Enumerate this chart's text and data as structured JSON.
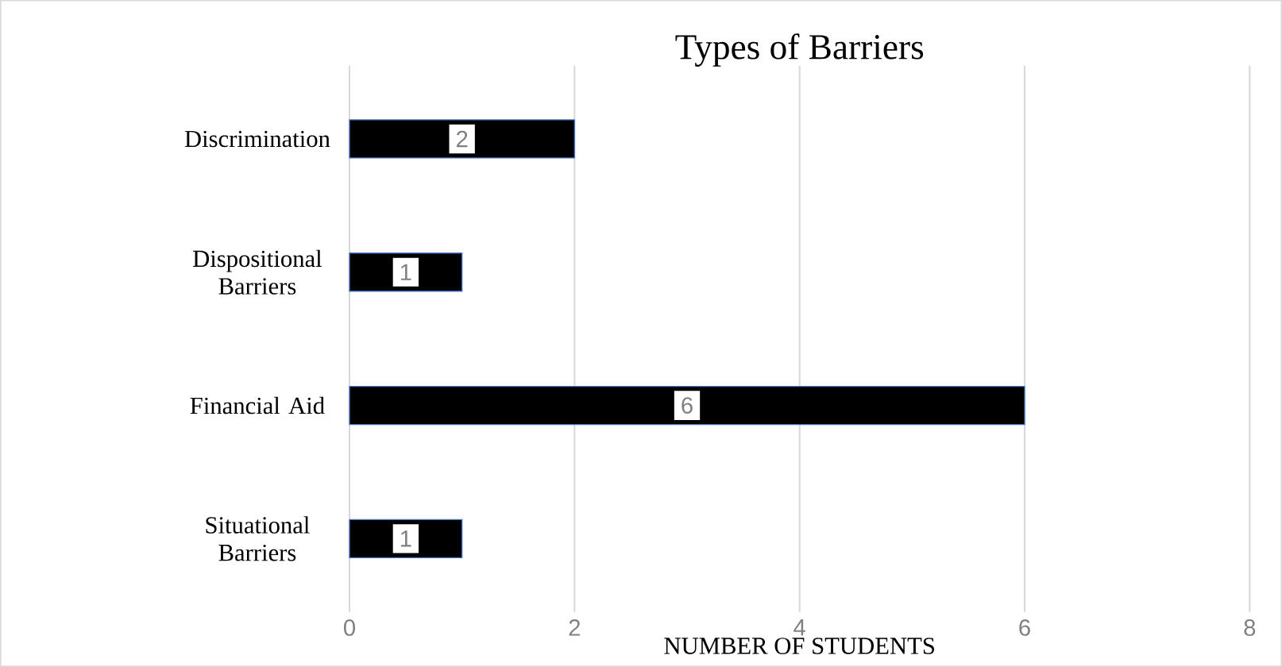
{
  "chart_data": {
    "type": "bar",
    "orientation": "horizontal",
    "title": "Types of Barriers",
    "xlabel": "NUMBER OF STUDENTS",
    "categories": [
      "Discrimination",
      "Dispositional Barriers",
      "Financial Aid",
      "Situational Barriers"
    ],
    "values": [
      2,
      1,
      6,
      1
    ],
    "color": "#000000",
    "xlim": [
      0,
      8
    ],
    "xticks": [
      0,
      2,
      4,
      6,
      8
    ],
    "grid": "x",
    "data_labels": true
  }
}
